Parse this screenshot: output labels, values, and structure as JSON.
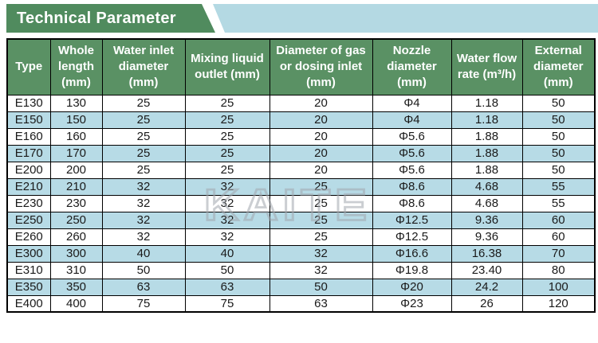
{
  "banner": {
    "title": "Technical Parameter"
  },
  "watermark": "KAITE",
  "colors": {
    "banner_green": "#508b5e",
    "banner_blue": "#b4d9e3",
    "header_green": "#5a9164",
    "row_blue": "#b7dbe6",
    "border": "#000000",
    "watermark_gray": "#a2a7ae"
  },
  "table": {
    "columns": [
      "Type",
      "Whole length (mm)",
      "Water inlet diameter (mm)",
      "Mixing liquid outlet (mm)",
      "Diameter of gas or dosing inlet (mm)",
      "Nozzle diameter (mm)",
      "Water flow rate (m³/h)",
      "External diameter (mm)"
    ],
    "rows": [
      [
        "E130",
        "130",
        "25",
        "25",
        "20",
        "Φ4",
        "1.18",
        "50"
      ],
      [
        "E150",
        "150",
        "25",
        "25",
        "20",
        "Φ4",
        "1.18",
        "50"
      ],
      [
        "E160",
        "160",
        "25",
        "25",
        "20",
        "Φ5.6",
        "1.88",
        "50"
      ],
      [
        "E170",
        "170",
        "25",
        "25",
        "20",
        "Φ5.6",
        "1.88",
        "50"
      ],
      [
        "E200",
        "200",
        "25",
        "25",
        "20",
        "Φ5.6",
        "1.88",
        "50"
      ],
      [
        "E210",
        "210",
        "32",
        "32",
        "25",
        "Φ8.6",
        "4.68",
        "55"
      ],
      [
        "E230",
        "230",
        "32",
        "32",
        "25",
        "Φ8.6",
        "4.68",
        "55"
      ],
      [
        "E250",
        "250",
        "32",
        "32",
        "25",
        "Φ12.5",
        "9.36",
        "60"
      ],
      [
        "E260",
        "260",
        "32",
        "32",
        "25",
        "Φ12.5",
        "9.36",
        "60"
      ],
      [
        "E300",
        "300",
        "40",
        "40",
        "32",
        "Φ16.6",
        "16.38",
        "70"
      ],
      [
        "E310",
        "310",
        "50",
        "50",
        "32",
        "Φ19.8",
        "23.40",
        "80"
      ],
      [
        "E350",
        "350",
        "63",
        "63",
        "50",
        "Φ20",
        "24.2",
        "100"
      ],
      [
        "E400",
        "400",
        "75",
        "75",
        "63",
        "Φ23",
        "26",
        "120"
      ]
    ]
  }
}
